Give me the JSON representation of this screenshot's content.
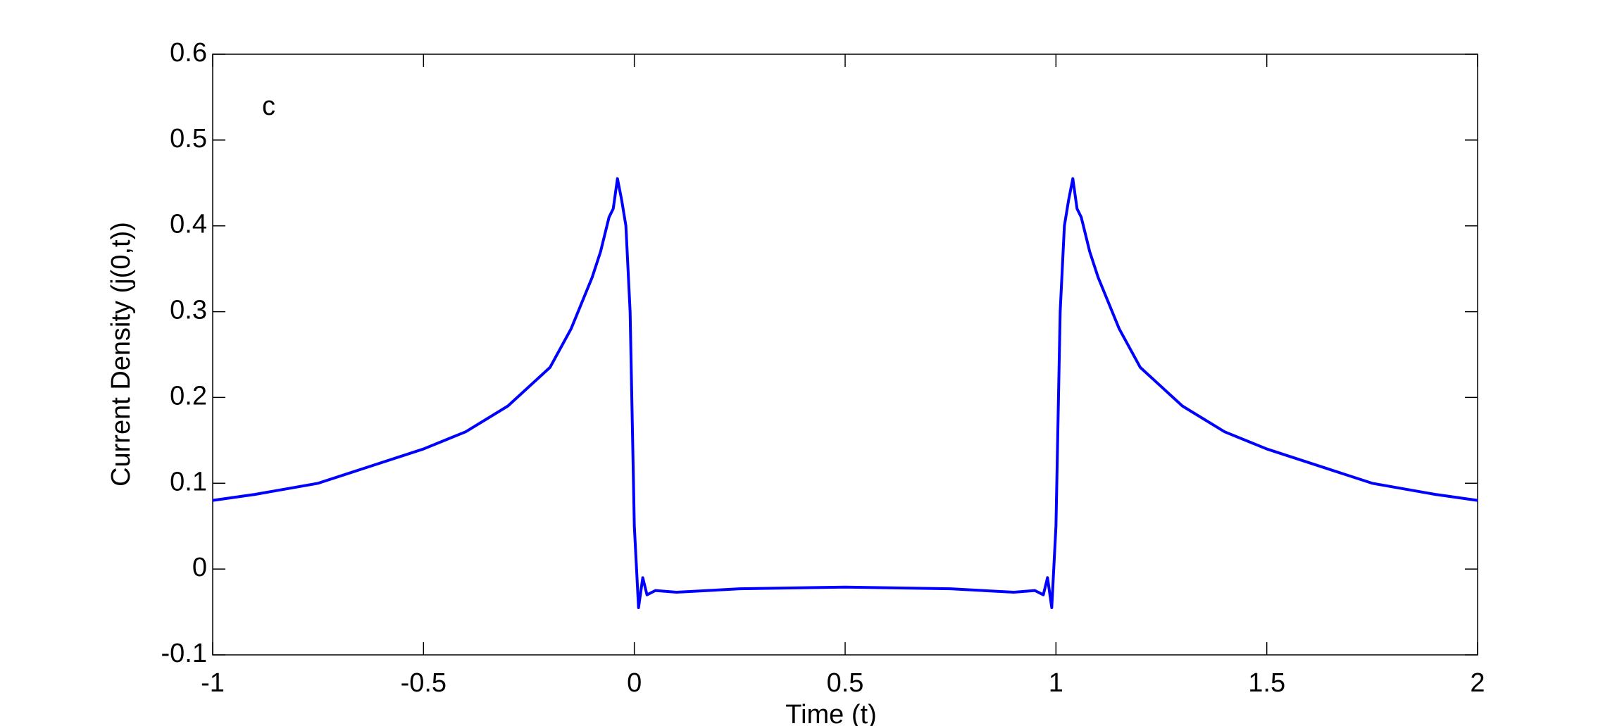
{
  "chart_data": {
    "type": "line",
    "xlabel": "Time (t)",
    "ylabel": "Current Density (j(0,t))",
    "annotation": "c",
    "x": [
      -1,
      -0.9,
      -0.75,
      -0.5,
      -0.4,
      -0.3,
      -0.2,
      -0.15,
      -0.1,
      -0.08,
      -0.06,
      -0.05,
      -0.04,
      -0.03,
      -0.02,
      -0.01,
      0,
      0.01,
      0.02,
      0.03,
      0.05,
      0.1,
      0.25,
      0.5,
      0.75,
      0.9,
      0.95,
      0.97,
      0.98,
      0.99,
      1.0,
      1.01,
      1.02,
      1.03,
      1.04,
      1.05,
      1.06,
      1.08,
      1.1,
      1.15,
      1.2,
      1.3,
      1.4,
      1.5,
      1.75,
      1.9,
      2
    ],
    "series": [
      {
        "name": "j(0,t)",
        "color": "#0000ff",
        "values": [
          0.08,
          0.087,
          0.1,
          0.14,
          0.16,
          0.19,
          0.235,
          0.28,
          0.34,
          0.37,
          0.41,
          0.42,
          0.455,
          0.43,
          0.4,
          0.3,
          0.05,
          -0.045,
          -0.01,
          -0.03,
          -0.025,
          -0.027,
          -0.023,
          -0.021,
          -0.023,
          -0.027,
          -0.025,
          -0.03,
          -0.01,
          -0.045,
          0.05,
          0.3,
          0.4,
          0.43,
          0.455,
          0.42,
          0.41,
          0.37,
          0.34,
          0.28,
          0.235,
          0.19,
          0.16,
          0.14,
          0.1,
          0.087,
          0.08
        ]
      }
    ],
    "xlim": [
      -1,
      2
    ],
    "xticks": [
      -1,
      -0.5,
      0,
      0.5,
      1,
      1.5,
      2
    ],
    "ylim": [
      -0.1,
      0.6
    ],
    "yticks": [
      -0.1,
      0,
      0.1,
      0.2,
      0.3,
      0.4,
      0.5,
      0.6
    ],
    "grid": false
  }
}
